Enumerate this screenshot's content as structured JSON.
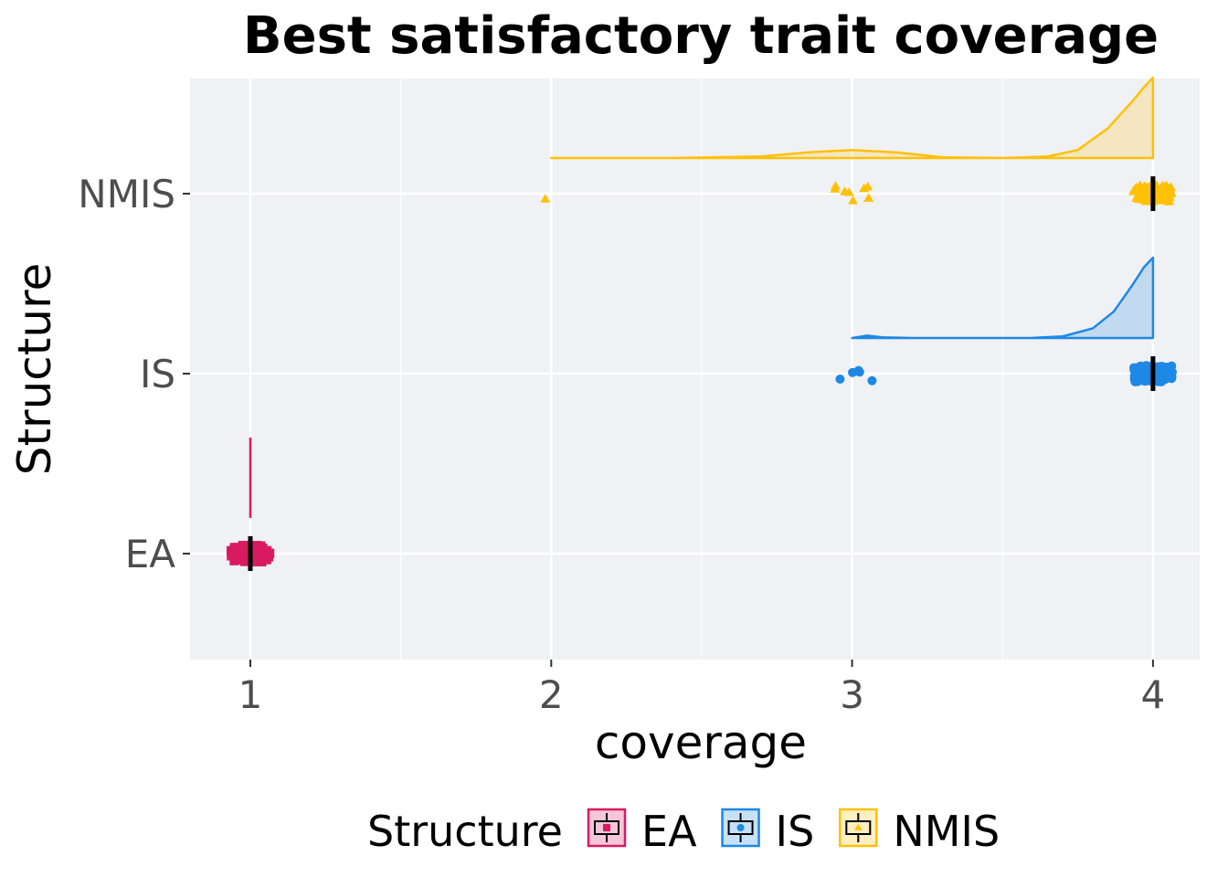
{
  "chart_data": {
    "type": "raincloud",
    "title": "Best satisfactory trait coverage",
    "xlabel": "coverage",
    "ylabel": "Structure",
    "xlim": [
      0.8,
      4.16
    ],
    "x_ticks": [
      "1",
      "2",
      "3",
      "4"
    ],
    "x_tick_values": [
      1,
      2,
      3,
      4
    ],
    "categories": [
      "EA",
      "IS",
      "NMIS"
    ],
    "grid": true,
    "legend": {
      "title": "Structure",
      "position": "bottom",
      "entries": [
        "EA",
        "IS",
        "NMIS"
      ]
    },
    "series": [
      {
        "name": "EA",
        "color": "#d81b60",
        "marker": "square",
        "median": 1,
        "density": [
          [
            1,
            1
          ]
        ],
        "points": [
          [
            1,
            100
          ]
        ]
      },
      {
        "name": "IS",
        "color": "#1e88e5",
        "marker": "circle",
        "median": 4,
        "density": [
          [
            3.0,
            0.0
          ],
          [
            3.05,
            0.03
          ],
          [
            3.1,
            0.008
          ],
          [
            3.2,
            0.0
          ],
          [
            3.4,
            0.0
          ],
          [
            3.6,
            0.002
          ],
          [
            3.7,
            0.02
          ],
          [
            3.8,
            0.12
          ],
          [
            3.87,
            0.33
          ],
          [
            3.93,
            0.65
          ],
          [
            3.97,
            0.88
          ],
          [
            4.0,
            1.0
          ]
        ],
        "points": [
          [
            2.96,
            1
          ],
          [
            3.01,
            5
          ],
          [
            4.0,
            90
          ]
        ]
      },
      {
        "name": "NMIS",
        "color": "#ffc107",
        "marker": "triangle",
        "median": 4,
        "density": [
          [
            2.0,
            0.0
          ],
          [
            2.4,
            0.0
          ],
          [
            2.7,
            0.02
          ],
          [
            2.85,
            0.07
          ],
          [
            3.0,
            0.1
          ],
          [
            3.15,
            0.07
          ],
          [
            3.3,
            0.01
          ],
          [
            3.5,
            0.0
          ],
          [
            3.65,
            0.02
          ],
          [
            3.75,
            0.1
          ],
          [
            3.85,
            0.37
          ],
          [
            3.93,
            0.7
          ],
          [
            3.97,
            0.88
          ],
          [
            4.0,
            1.0
          ]
        ],
        "points": [
          [
            1.98,
            1
          ],
          [
            3.0,
            8
          ],
          [
            4.0,
            90
          ]
        ]
      }
    ]
  }
}
